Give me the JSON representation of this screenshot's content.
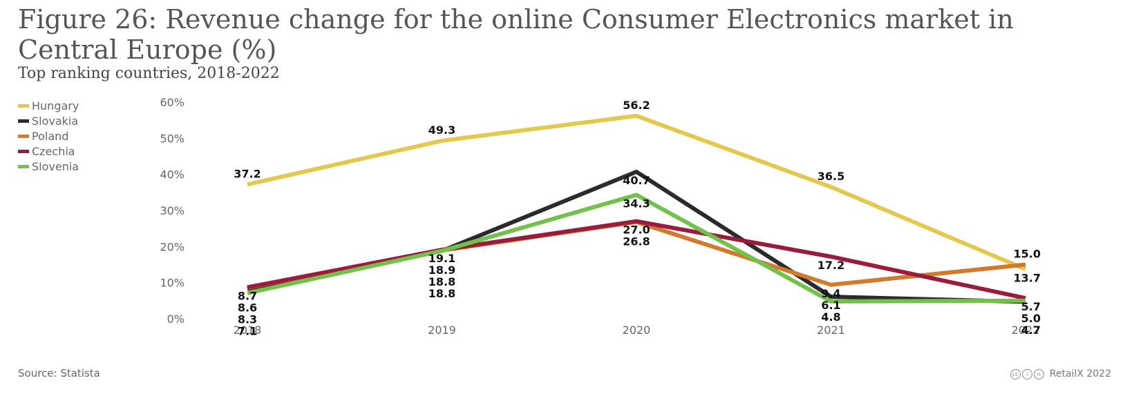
{
  "title": "Figure 26: Revenue change for the online Consumer Electronics market in Central Europe (%)",
  "subtitle": "Top ranking countries, 2018-2022",
  "source": "Source: Statista",
  "credit": "RetailX 2022",
  "chart_data": {
    "type": "line",
    "categories": [
      "2018",
      "2019",
      "2020",
      "2021",
      "2022"
    ],
    "ylim": [
      0,
      60
    ],
    "yticks": [
      0,
      10,
      20,
      30,
      40,
      50,
      60
    ],
    "ytick_labels": [
      "0%",
      "10%",
      "20%",
      "30%",
      "40%",
      "50%",
      "60%"
    ],
    "legend_position": "top-left",
    "grid": false,
    "series": [
      {
        "name": "Hungary",
        "color": "#e3c84e",
        "values": [
          37.2,
          49.3,
          56.2,
          36.5,
          13.7
        ]
      },
      {
        "name": "Slovakia",
        "color": "#2b2b2b",
        "values": [
          8.3,
          18.8,
          40.7,
          6.1,
          4.7
        ]
      },
      {
        "name": "Poland",
        "color": "#d27a2c",
        "values": [
          8.6,
          18.9,
          26.8,
          9.4,
          15.0
        ]
      },
      {
        "name": "Czechia",
        "color": "#9b1b3d",
        "values": [
          8.7,
          19.1,
          27.0,
          17.2,
          5.7
        ]
      },
      {
        "name": "Slovenia",
        "color": "#73c04b",
        "values": [
          7.1,
          18.8,
          34.3,
          4.8,
          5.0
        ]
      }
    ]
  }
}
